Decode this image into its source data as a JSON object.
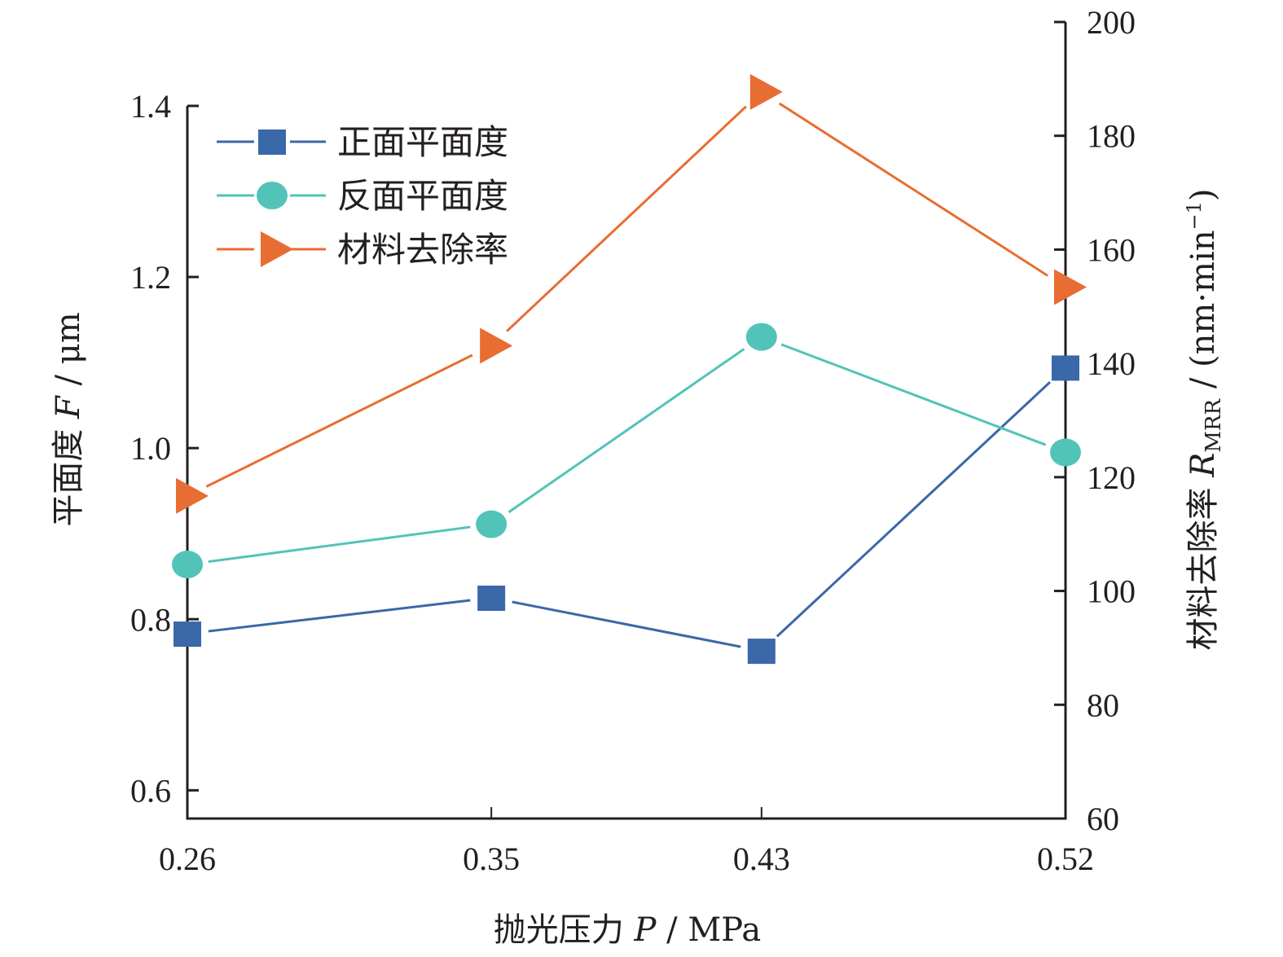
{
  "chart_data": {
    "type": "line",
    "title": "",
    "xlabel": "抛光压力 P / MPa",
    "xlabel_parts": {
      "prefix": "抛光压力 ",
      "var": "P",
      "suffix": " / MPa"
    },
    "ylabel_left": "平面度 F / μm",
    "ylabel_left_parts": {
      "prefix": "平面度 ",
      "var": "F",
      "suffix": " / μm"
    },
    "ylabel_right": "材料去除率 R_MRR / (nm·min⁻¹)",
    "ylabel_right_parts": {
      "prefix": "材料去除率 ",
      "var": "R",
      "sub": "MRR",
      "mid": " / (nm·min",
      "sup": "−1",
      "end": ")"
    },
    "categories": [
      "0.26",
      "0.35",
      "0.43",
      "0.52"
    ],
    "x": [
      0.26,
      0.35,
      0.43,
      0.52
    ],
    "xlim": [
      0.26,
      0.52
    ],
    "ylim_left": [
      0.567,
      1.4
    ],
    "yticks_left": [
      "0.6",
      "0.8",
      "1.0",
      "1.2",
      "1.4"
    ],
    "ylim_right": [
      60,
      200
    ],
    "yticks_right": [
      "60",
      "80",
      "100",
      "120",
      "140",
      "160",
      "180",
      "200"
    ],
    "grid": false,
    "legend_position": "top-left",
    "series": [
      {
        "name": "正面平面度",
        "axis": "left",
        "marker": "square",
        "color": "#3a68a8",
        "values": [
          0.783,
          0.825,
          0.763,
          1.094
        ]
      },
      {
        "name": "反面平面度",
        "axis": "left",
        "marker": "circle",
        "color": "#52c3b8",
        "values": [
          0.864,
          0.911,
          1.13,
          0.995
        ]
      },
      {
        "name": "材料去除率",
        "axis": "right",
        "marker": "triangle-right",
        "color": "#e86d33",
        "values": [
          116.7,
          143.1,
          187.7,
          153.4
        ]
      }
    ]
  }
}
